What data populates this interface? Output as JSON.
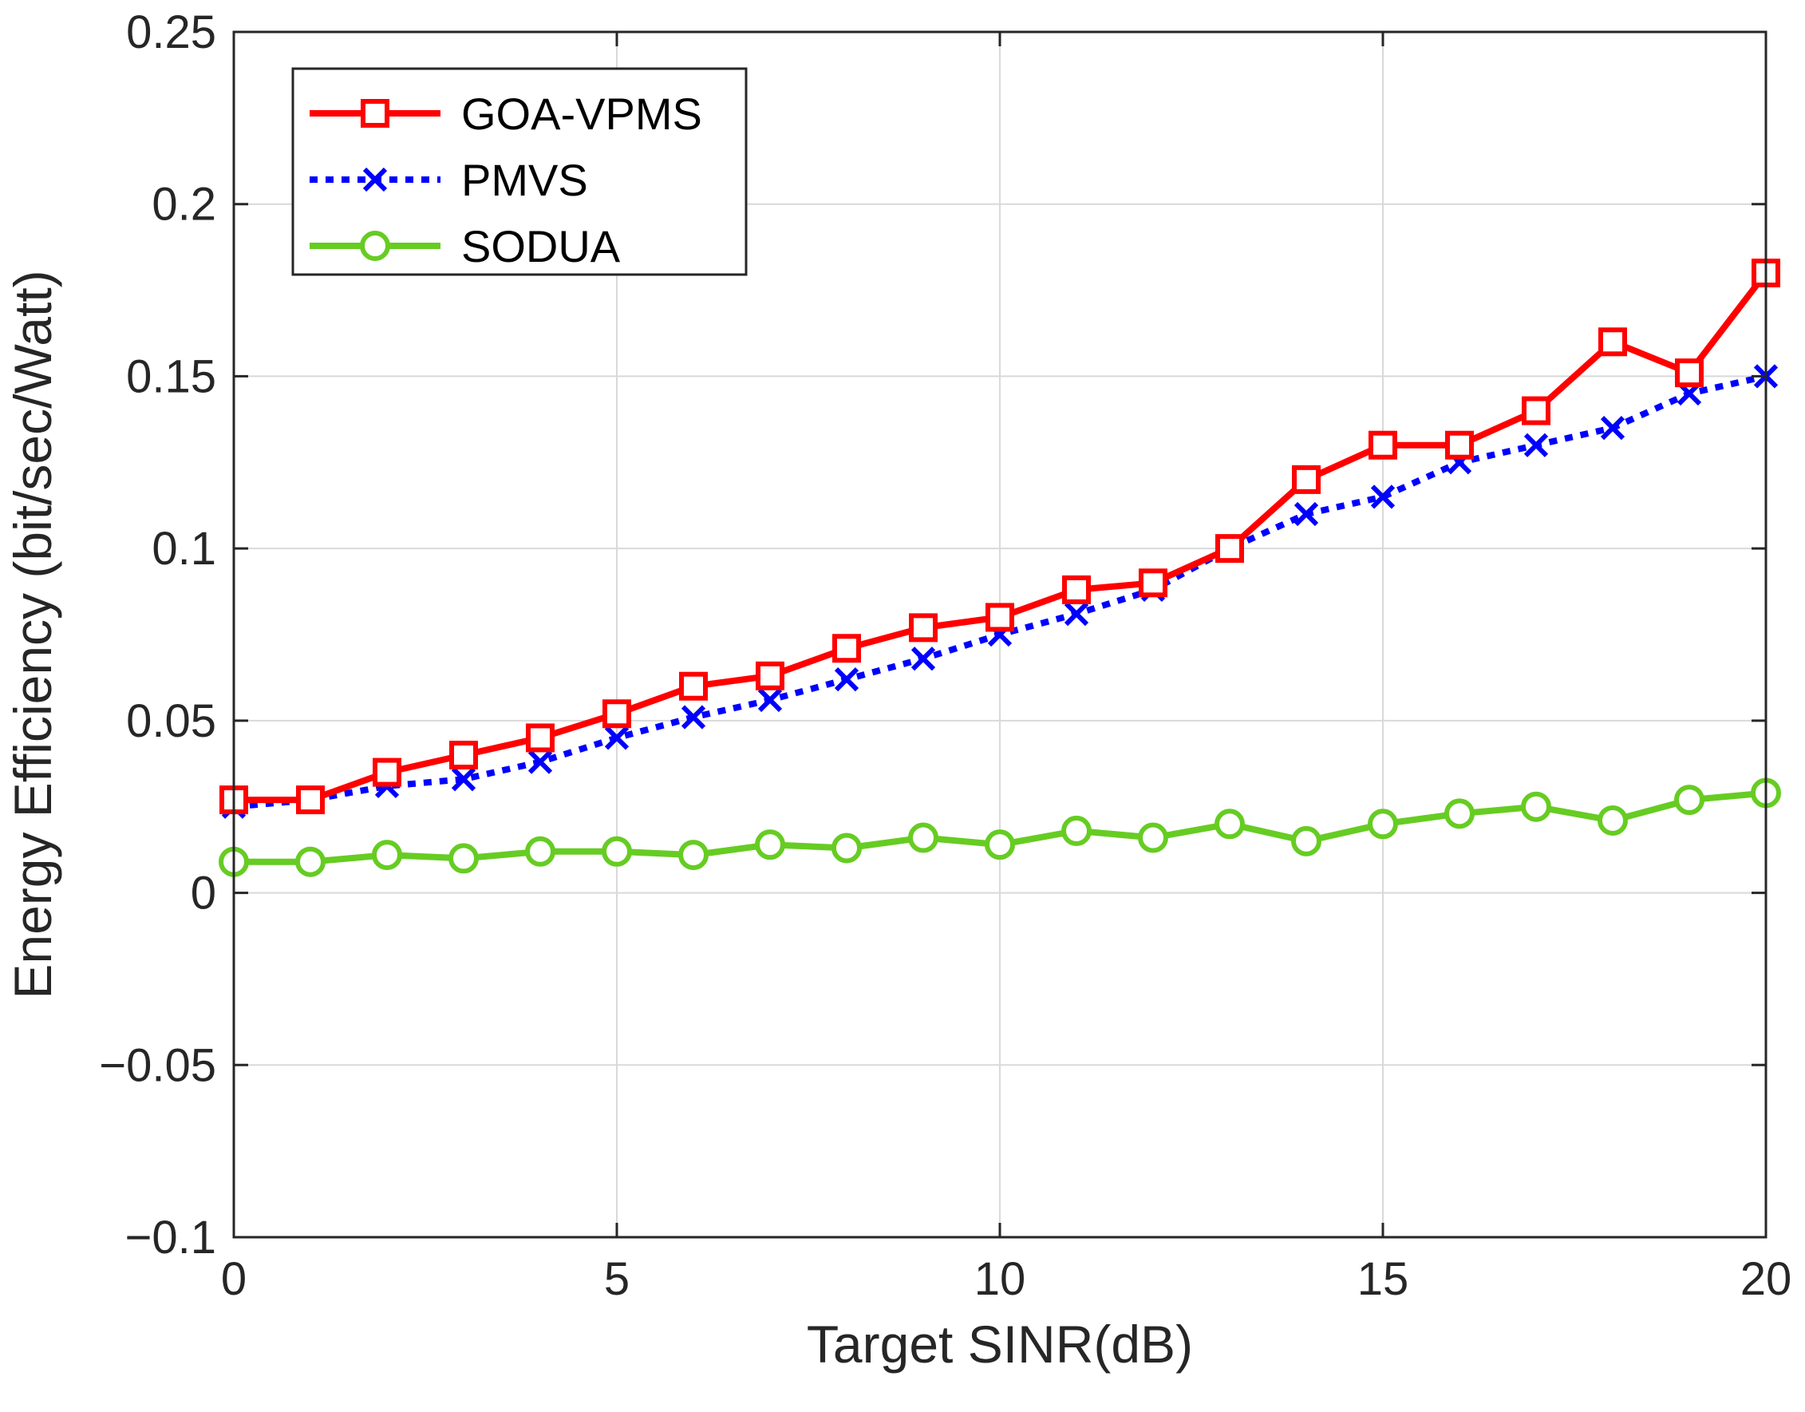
{
  "chart_data": {
    "type": "line",
    "title": "",
    "xlabel": "Target SINR(dB)",
    "ylabel": "Energy Efficiency (bit/sec/Watt)",
    "xlim": [
      0,
      20
    ],
    "ylim": [
      -0.1,
      0.25
    ],
    "grid": true,
    "legend_position": "top-left",
    "x_ticks": [
      0,
      5,
      10,
      15,
      20
    ],
    "x_tick_labels": [
      "0",
      "5",
      "10",
      "15",
      "20"
    ],
    "y_ticks": [
      -0.1,
      -0.05,
      0,
      0.05,
      0.1,
      0.15,
      0.2,
      0.25
    ],
    "y_tick_labels": [
      "−0.1",
      "−0.05",
      "0",
      "0.05",
      "0.1",
      "0.15",
      "0.2",
      "0.25"
    ],
    "x": [
      0,
      1,
      2,
      3,
      4,
      5,
      6,
      7,
      8,
      9,
      10,
      11,
      12,
      13,
      14,
      15,
      16,
      17,
      18,
      19,
      20
    ],
    "series": [
      {
        "name": "GOA-VPMS",
        "color": "#ff0000",
        "line_style": "solid",
        "marker": "square",
        "values": [
          0.027,
          0.027,
          0.035,
          0.04,
          0.045,
          0.052,
          0.06,
          0.063,
          0.071,
          0.077,
          0.08,
          0.088,
          0.09,
          0.1,
          0.12,
          0.13,
          0.13,
          0.14,
          0.16,
          0.151,
          0.18
        ]
      },
      {
        "name": "PMVS",
        "color": "#0000ff",
        "line_style": "dotted",
        "marker": "x",
        "values": [
          0.025,
          0.027,
          0.031,
          0.033,
          0.038,
          0.045,
          0.051,
          0.056,
          0.062,
          0.068,
          0.075,
          0.081,
          0.088,
          0.1,
          0.11,
          0.115,
          0.125,
          0.13,
          0.135,
          0.145,
          0.15
        ]
      },
      {
        "name": "SODUA",
        "color": "#66cc22",
        "line_style": "solid",
        "marker": "circle",
        "values": [
          0.009,
          0.009,
          0.011,
          0.01,
          0.012,
          0.012,
          0.011,
          0.014,
          0.013,
          0.016,
          0.014,
          0.018,
          0.016,
          0.02,
          0.015,
          0.02,
          0.023,
          0.025,
          0.021,
          0.027,
          0.029
        ]
      }
    ]
  }
}
